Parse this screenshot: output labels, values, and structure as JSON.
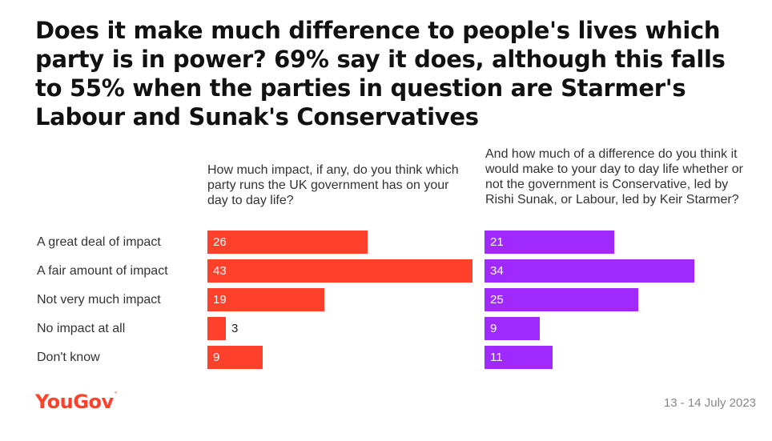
{
  "title": "Does it make much difference to people's lives which party is in power? 69% say it does, although this falls to 55% when the parties in question are Starmer's Labour and Sunak's Conservatives",
  "questions": {
    "q1": "How much impact, if any, do you think which party runs the UK government has on your day to day life?",
    "q2": "And how much of a difference do you think it would make to your day to day life whether or not the government is Conservative, led by Rishi Sunak, or Labour, led by Keir Starmer?"
  },
  "colors": {
    "series1": "#ff412c",
    "series2": "#9f29ff",
    "value_inside": "#ffffff",
    "value_outside": "#222222",
    "brand": "#ff412c"
  },
  "chart_data": {
    "type": "bar",
    "orientation": "horizontal",
    "title": "Does it make much difference to people's lives which party is in power? 69% say it does, although this falls to 55% when the parties in question are Starmer's Labour and Sunak's Conservatives",
    "categories": [
      "A great deal of impact",
      "A fair amount of impact",
      "Not very much impact",
      "No impact at all",
      "Don't know"
    ],
    "series": [
      {
        "values": [
          26,
          43,
          19,
          3,
          9
        ]
      },
      {
        "values": [
          21,
          34,
          25,
          9,
          11
        ]
      }
    ],
    "xlim": [
      0,
      43
    ],
    "grid": false
  },
  "footer": {
    "logo": "YouGov",
    "date": "13 - 14 July 2023"
  }
}
